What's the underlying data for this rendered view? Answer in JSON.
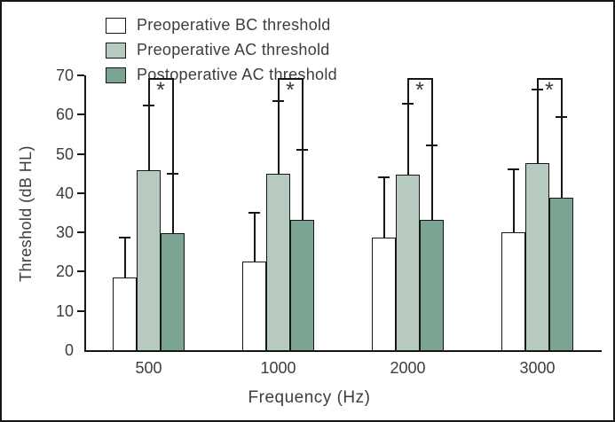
{
  "figure": {
    "background": "#ffffff",
    "border_color": "#161616",
    "text_color": "#3d3d3d",
    "asterisk_color": "#2c3a4a"
  },
  "legend": {
    "items": [
      {
        "label": "Preoperative BC threshold",
        "color": "#ffffff"
      },
      {
        "label": "Preoperative AC threshold",
        "color": "#b6cabf"
      },
      {
        "label": "Postoperative AC threshold",
        "color": "#7aa392"
      }
    ]
  },
  "chart_data": {
    "type": "bar",
    "title": "",
    "xlabel": "Frequency (Hz)",
    "ylabel": "Threshold (dB HL)",
    "ylim": [
      0,
      70
    ],
    "yticks": [
      0,
      10,
      20,
      30,
      40,
      50,
      60,
      70
    ],
    "grid": false,
    "legend_position": "top",
    "categories": [
      "500",
      "1000",
      "2000",
      "3000"
    ],
    "series": [
      {
        "name": "Preoperative BC threshold",
        "color": "#ffffff",
        "values": [
          18.6,
          22.5,
          28.7,
          30.0
        ],
        "error_top": [
          28.7,
          35.1,
          44.1,
          46.1
        ]
      },
      {
        "name": "Preoperative AC threshold",
        "color": "#b6cabf",
        "values": [
          45.8,
          44.9,
          44.7,
          47.6
        ],
        "error_top": [
          62.4,
          63.5,
          62.8,
          66.4
        ]
      },
      {
        "name": "Postoperative AC threshold",
        "color": "#7aa392",
        "values": [
          29.8,
          33.3,
          33.3,
          38.8
        ],
        "error_top": [
          44.9,
          51.1,
          52.2,
          59.4
        ]
      }
    ],
    "significance": {
      "label": "*",
      "compares": [
        "Preoperative AC threshold",
        "Postoperative AC threshold"
      ],
      "bracket_top_db": 69.3,
      "groups": [
        "500",
        "1000",
        "2000",
        "3000"
      ]
    }
  }
}
